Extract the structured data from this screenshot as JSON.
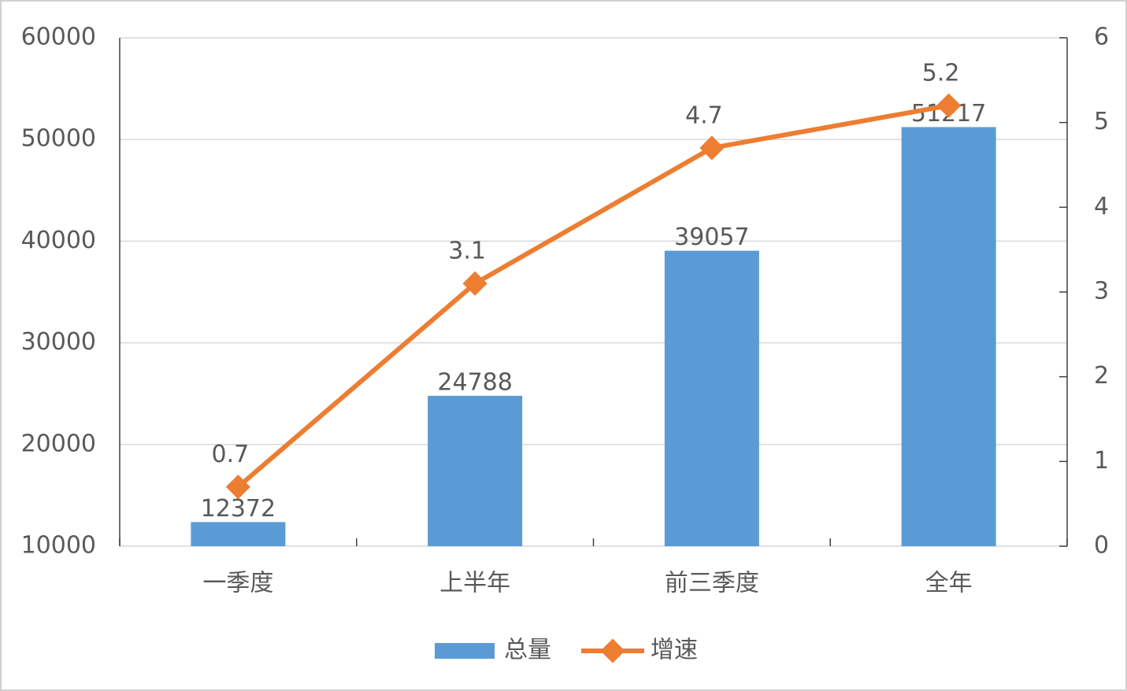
{
  "chart_data": {
    "type": "bar",
    "categories": [
      "一季度",
      "上半年",
      "前三季度",
      "全年"
    ],
    "series": [
      {
        "name": "总量",
        "type": "bar",
        "color": "#5b9bd5",
        "values": [
          12372,
          24788,
          39057,
          51217
        ]
      },
      {
        "name": "增速",
        "type": "line",
        "axis": "y2",
        "color": "#ed7d31",
        "values": [
          0.7,
          3.1,
          4.7,
          5.2
        ]
      }
    ],
    "ylim": [
      10000,
      60000
    ],
    "yticks": [
      10000,
      20000,
      30000,
      40000,
      50000,
      60000
    ],
    "y2lim": [
      0,
      6
    ],
    "y2ticks": [
      0,
      1,
      2,
      3,
      4,
      5,
      6
    ],
    "grid": true,
    "legend": "bottom"
  }
}
